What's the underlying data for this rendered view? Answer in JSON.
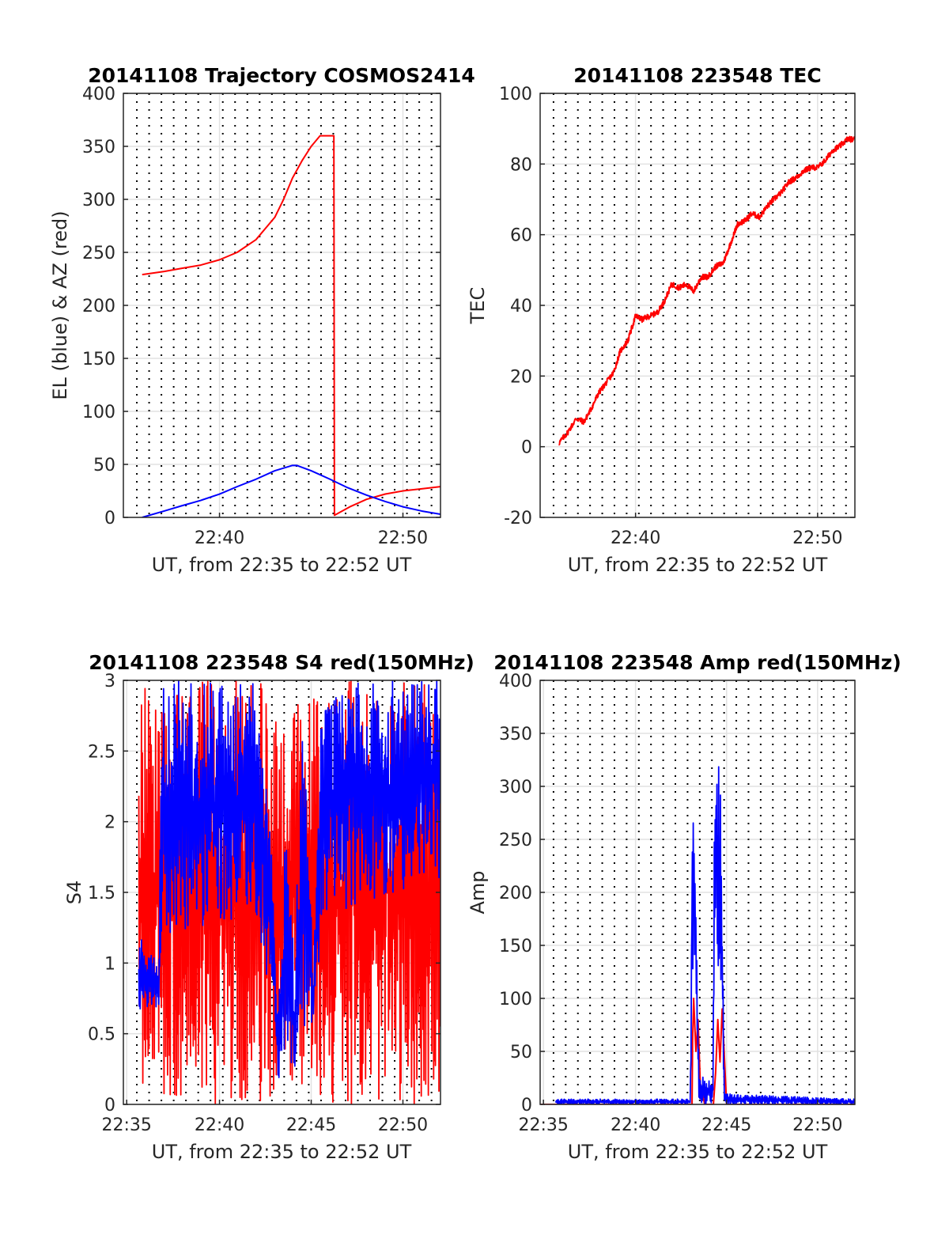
{
  "chart_data": [
    {
      "id": "trajectory",
      "type": "line",
      "title": "20141108 Trajectory COSMOS2414",
      "xlabel": "UT, from 22:35 to 22:52 UT",
      "ylabel": "EL (blue) & AZ (red)",
      "xlim": [
        22.58,
        22.867
      ],
      "ylim": [
        0,
        400
      ],
      "grid": true,
      "x_ticks": [
        {
          "x": 22.667,
          "label": "22:40"
        },
        {
          "x": 22.833,
          "label": "22:50"
        }
      ],
      "y_ticks": [
        0,
        50,
        100,
        150,
        200,
        250,
        300,
        350,
        400
      ],
      "series": [
        {
          "color": "#ff0000",
          "x": [
            22.597,
            22.617,
            22.633,
            22.65,
            22.667,
            22.683,
            22.7,
            22.717,
            22.725,
            22.733,
            22.742,
            22.75,
            22.758,
            22.7705,
            22.771,
            22.785,
            22.8,
            22.817,
            22.833,
            22.85,
            22.867
          ],
          "y": [
            229,
            232,
            235,
            238,
            243,
            250,
            262,
            283,
            300,
            320,
            337,
            350,
            360,
            360,
            2,
            10,
            17,
            22,
            25,
            27,
            29
          ]
        },
        {
          "color": "#0000ff",
          "x": [
            22.597,
            22.617,
            22.633,
            22.65,
            22.667,
            22.683,
            22.7,
            22.717,
            22.733,
            22.737,
            22.75,
            22.767,
            22.783,
            22.8,
            22.817,
            22.833,
            22.85,
            22.867
          ],
          "y": [
            0,
            6,
            11,
            16,
            22,
            29,
            36,
            44,
            49,
            49,
            44,
            36,
            28,
            21,
            15,
            10,
            6,
            3
          ]
        }
      ]
    },
    {
      "id": "tec",
      "type": "line",
      "title": "20141108 223548 TEC",
      "xlabel": "UT, from 22:35 to 22:52 UT",
      "ylabel": "TEC",
      "xlim": [
        22.58,
        22.867
      ],
      "ylim": [
        -20,
        100
      ],
      "grid": true,
      "x_ticks": [
        {
          "x": 22.667,
          "label": "22:40"
        },
        {
          "x": 22.833,
          "label": "22:50"
        }
      ],
      "y_ticks": [
        -20,
        0,
        20,
        40,
        60,
        80,
        100
      ],
      "series": [
        {
          "color": "#ff0000",
          "x": [
            22.597,
            22.605,
            22.613,
            22.62,
            22.627,
            22.633,
            22.64,
            22.647,
            22.653,
            22.66,
            22.667,
            22.673,
            22.68,
            22.687,
            22.693,
            22.7,
            22.707,
            22.713,
            22.72,
            22.727,
            22.733,
            22.74,
            22.747,
            22.753,
            22.76,
            22.767,
            22.773,
            22.78,
            22.787,
            22.793,
            22.8,
            22.807,
            22.813,
            22.82,
            22.827,
            22.833,
            22.84,
            22.847,
            22.853,
            22.86,
            22.867
          ],
          "y": [
            1,
            4,
            8,
            7,
            11,
            15,
            18,
            21,
            27,
            30,
            37,
            36,
            37,
            38,
            41,
            46,
            45,
            46,
            44,
            48,
            48,
            51,
            52,
            57,
            63,
            64,
            66,
            65,
            68,
            70,
            72,
            75,
            76,
            78,
            79,
            79,
            81,
            84,
            85,
            87,
            87
          ]
        }
      ]
    },
    {
      "id": "s4",
      "type": "line",
      "title": "20141108 223548 S4 red(150MHz)",
      "xlabel": "UT, from 22:35 to 22:52 UT",
      "ylabel": "S4",
      "xlim": [
        22.58,
        22.867
      ],
      "ylim": [
        0,
        3
      ],
      "grid": true,
      "x_ticks": [
        {
          "x": 22.583,
          "label": "22:35"
        },
        {
          "x": 22.667,
          "label": "22:40"
        },
        {
          "x": 22.75,
          "label": "22:45"
        },
        {
          "x": 22.833,
          "label": "22:50"
        }
      ],
      "y_ticks": [
        0,
        0.5,
        1,
        1.5,
        2,
        2.5,
        3
      ],
      "series": [
        {
          "color": "#ff0000",
          "x_start": 22.594,
          "x_end": 22.867,
          "x_step": 0.0004,
          "noisy": true,
          "envelope": [
            {
              "x": 22.594,
              "lo": 0,
              "hi": 3
            },
            {
              "x": 22.635,
              "lo": 0,
              "hi": 3
            },
            {
              "x": 22.71,
              "lo": 0,
              "hi": 3
            },
            {
              "x": 22.722,
              "lo": 0.1,
              "hi": 2.8
            },
            {
              "x": 22.745,
              "lo": 0.1,
              "hi": 2.9
            },
            {
              "x": 22.76,
              "lo": 0,
              "hi": 3
            },
            {
              "x": 22.867,
              "lo": 0,
              "hi": 3
            }
          ]
        },
        {
          "color": "#0000ff",
          "x_start": 22.594,
          "x_end": 22.867,
          "x_step": 0.0004,
          "noisy": true,
          "envelope": [
            {
              "x": 22.594,
              "lo": 0.6,
              "hi": 1.2
            },
            {
              "x": 22.612,
              "lo": 0.7,
              "hi": 1.0
            },
            {
              "x": 22.615,
              "lo": 1.2,
              "hi": 3
            },
            {
              "x": 22.7,
              "lo": 1.3,
              "hi": 3
            },
            {
              "x": 22.715,
              "lo": 0.7,
              "hi": 2.0
            },
            {
              "x": 22.72,
              "lo": 0.1,
              "hi": 0.6
            },
            {
              "x": 22.727,
              "lo": 0.4,
              "hi": 2.0
            },
            {
              "x": 22.735,
              "lo": 0.1,
              "hi": 1.0
            },
            {
              "x": 22.742,
              "lo": 0.5,
              "hi": 2.9
            },
            {
              "x": 22.752,
              "lo": 0.5,
              "hi": 1.0
            },
            {
              "x": 22.76,
              "lo": 1.3,
              "hi": 3
            },
            {
              "x": 22.867,
              "lo": 1.6,
              "hi": 3
            }
          ]
        }
      ]
    },
    {
      "id": "amp",
      "type": "line",
      "title": "20141108 223548 Amp red(150MHz)",
      "xlabel": "UT, from 22:35 to 22:52 UT",
      "ylabel": "Amp",
      "xlim": [
        22.58,
        22.867
      ],
      "ylim": [
        0,
        400
      ],
      "grid": true,
      "x_ticks": [
        {
          "x": 22.583,
          "label": "22:35"
        },
        {
          "x": 22.667,
          "label": "22:40"
        },
        {
          "x": 22.75,
          "label": "22:45"
        },
        {
          "x": 22.833,
          "label": "22:50"
        }
      ],
      "y_ticks": [
        0,
        50,
        100,
        150,
        200,
        250,
        300,
        350,
        400
      ],
      "series": [
        {
          "color": "#ff0000",
          "x": [
            22.58,
            22.7185,
            22.719,
            22.72,
            22.722,
            22.724,
            22.726,
            22.73,
            22.738,
            22.74,
            22.742,
            22.744,
            22.746,
            22.75,
            22.867
          ],
          "y": [
            0,
            0,
            60,
            100,
            50,
            80,
            20,
            0,
            0,
            30,
            80,
            40,
            90,
            0,
            0
          ]
        },
        {
          "color": "#0000ff",
          "x_start": 22.594,
          "x_end": 22.867,
          "x_step": 0.0004,
          "noisy": true,
          "envelope": [
            {
              "x": 22.594,
              "lo": 0,
              "hi": 5
            },
            {
              "x": 22.717,
              "lo": 0,
              "hi": 5
            },
            {
              "x": 22.7185,
              "lo": 100,
              "hi": 305
            },
            {
              "x": 22.72,
              "lo": 150,
              "hi": 300
            },
            {
              "x": 22.722,
              "lo": 100,
              "hi": 200
            },
            {
              "x": 22.725,
              "lo": 0,
              "hi": 30
            },
            {
              "x": 22.7375,
              "lo": 0,
              "hi": 20
            },
            {
              "x": 22.739,
              "lo": 150,
              "hi": 320
            },
            {
              "x": 22.745,
              "lo": 100,
              "hi": 320
            },
            {
              "x": 22.748,
              "lo": 0,
              "hi": 10
            },
            {
              "x": 22.867,
              "lo": 0,
              "hi": 5
            }
          ]
        }
      ]
    }
  ]
}
